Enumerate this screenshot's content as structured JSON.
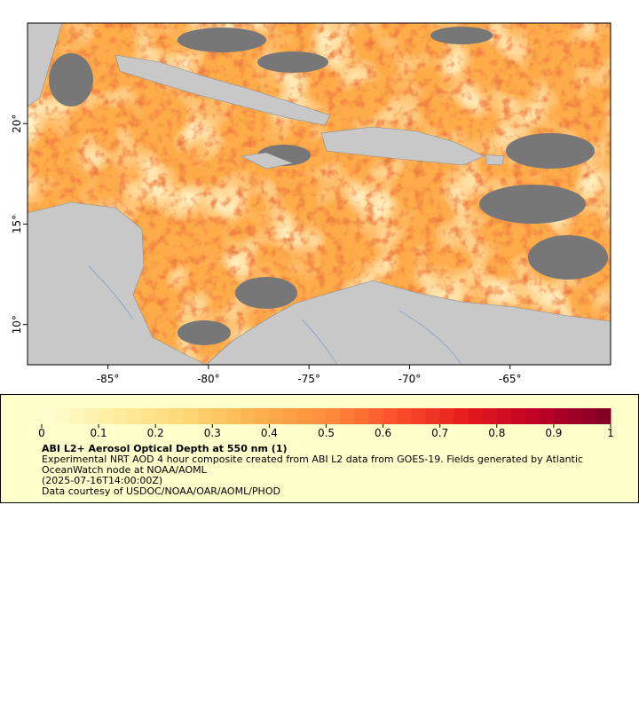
{
  "chart_data": {
    "type": "map",
    "xlim": [
      -89,
      -60
    ],
    "ylim": [
      8,
      25
    ],
    "xticks": [
      {
        "value": -85,
        "label": "-85°"
      },
      {
        "value": -80,
        "label": "-80°"
      },
      {
        "value": -75,
        "label": "-75°"
      },
      {
        "value": -70,
        "label": "-70°"
      },
      {
        "value": -65,
        "label": "-65°"
      }
    ],
    "yticks": [
      {
        "value": 10,
        "label": "10°"
      },
      {
        "value": 15,
        "label": "15°"
      },
      {
        "value": 20,
        "label": "20°"
      }
    ],
    "colorbar": {
      "lim": [
        0,
        1
      ],
      "ticks": [
        0,
        0.1,
        0.2,
        0.3,
        0.4,
        0.5,
        0.6,
        0.7,
        0.8,
        0.9,
        1
      ],
      "colormap": [
        "#ffffd4",
        "#ffeda0",
        "#fed976",
        "#feb24c",
        "#fd8d3c",
        "#fc4e2a",
        "#e31a1c",
        "#bd0026",
        "#800026"
      ],
      "title": "ABI L2+ Aerosol Optical Depth at 550 nm (1)",
      "description": "Experimental NRT AOD 4 hour composite created from ABI L2 data from GOES-19. Fields generated by Atlantic OceanWatch node at NOAA/AOML",
      "date": "(2025-07-16T14:00:00Z)",
      "credit": "Data courtesy of USDOC/NOAA/OAR/AOML/PHOD"
    }
  }
}
